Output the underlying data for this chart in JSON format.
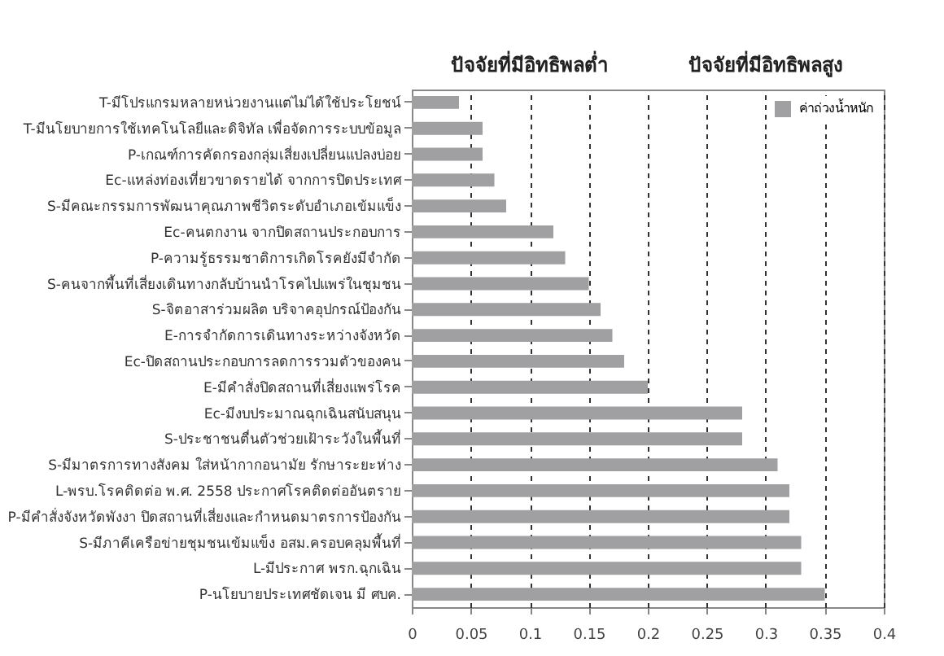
{
  "chart_data": {
    "type": "bar",
    "orientation": "horizontal",
    "annotations": [
      "ปัจจัยที่มีอิทธิพลต่ำ",
      "ปัจจัยที่มีอิทธิพลสูง"
    ],
    "categories": [
      "T-มีโปรแกรมหลายหน่วยงานแต่ไม่ได้ใช้ประโยชน์",
      "T-มีนโยบายการใช้เทคโนโลยีและดิจิทัล เพื่อจัดการระบบข้อมูล",
      "P-เกณฑ์การคัดกรองกลุ่มเสี่ยงเปลี่ยนแปลงบ่อย",
      "Ec-แหล่งท่องเที่ยวขาดรายได้ จากการปิดประเทศ",
      "S-มีคณะกรรมการพัฒนาคุณภาพชีวิตระดับอำเภอเข้มแข็ง",
      "Ec-คนตกงาน จากปิดสถานประกอบการ",
      "P-ความรู้ธรรมชาติการเกิดโรคยังมีจำกัด",
      "S-คนจากพื้นที่เสี่ยงเดินทางกลับบ้านนำโรคไปแพร่ในชุมชน",
      "S-จิตอาสาร่วมผลิต บริจาคอุปกรณ์ป้องกัน",
      "E-การจำกัดการเดินทางระหว่างจังหวัด",
      "Ec-ปิดสถานประกอบการลดการรวมตัวของคน",
      "E-มีคำสั่งปิดสถานที่เสี่ยงแพร่โรค",
      "Ec-มีงบประมาณฉุกเฉินสนับสนุน",
      "S-ประชาชนตื่นตัวช่วยเฝ้าระวังในพื้นที่",
      "S-มีมาตรการทางสังคม ใส่หน้ากากอนามัย รักษาระยะห่าง",
      "L-พรบ.โรคติดต่อ พ.ศ. 2558 ประกาศโรคติดต่ออันตราย",
      "P-มีคำสั่งจังหวัดพังงา ปิดสถานที่เสี่ยงและกำหนดมาตรการป้องกัน",
      "S-มีภาคีเครือข่ายชุมชนเข้มแข็ง อสม.ครอบคลุมพื้นที่",
      "L-มีประกาศ พรก.ฉุกเฉิน",
      "P-นโยบายประเทศชัดเจน มี ศบค."
    ],
    "series": [
      {
        "name": "ค่าถ่วงน้ำหนัก",
        "color": "#a0a0a3",
        "values": [
          0.04,
          0.06,
          0.06,
          0.07,
          0.08,
          0.12,
          0.13,
          0.15,
          0.16,
          0.17,
          0.18,
          0.2,
          0.28,
          0.28,
          0.31,
          0.32,
          0.32,
          0.33,
          0.33,
          0.35
        ]
      }
    ],
    "xlim": [
      0,
      0.4
    ],
    "xticks": [
      0,
      0.05,
      0.1,
      0.15,
      0.2,
      0.25,
      0.3,
      0.35,
      0.4
    ],
    "grid": "x",
    "legend": "top right"
  }
}
